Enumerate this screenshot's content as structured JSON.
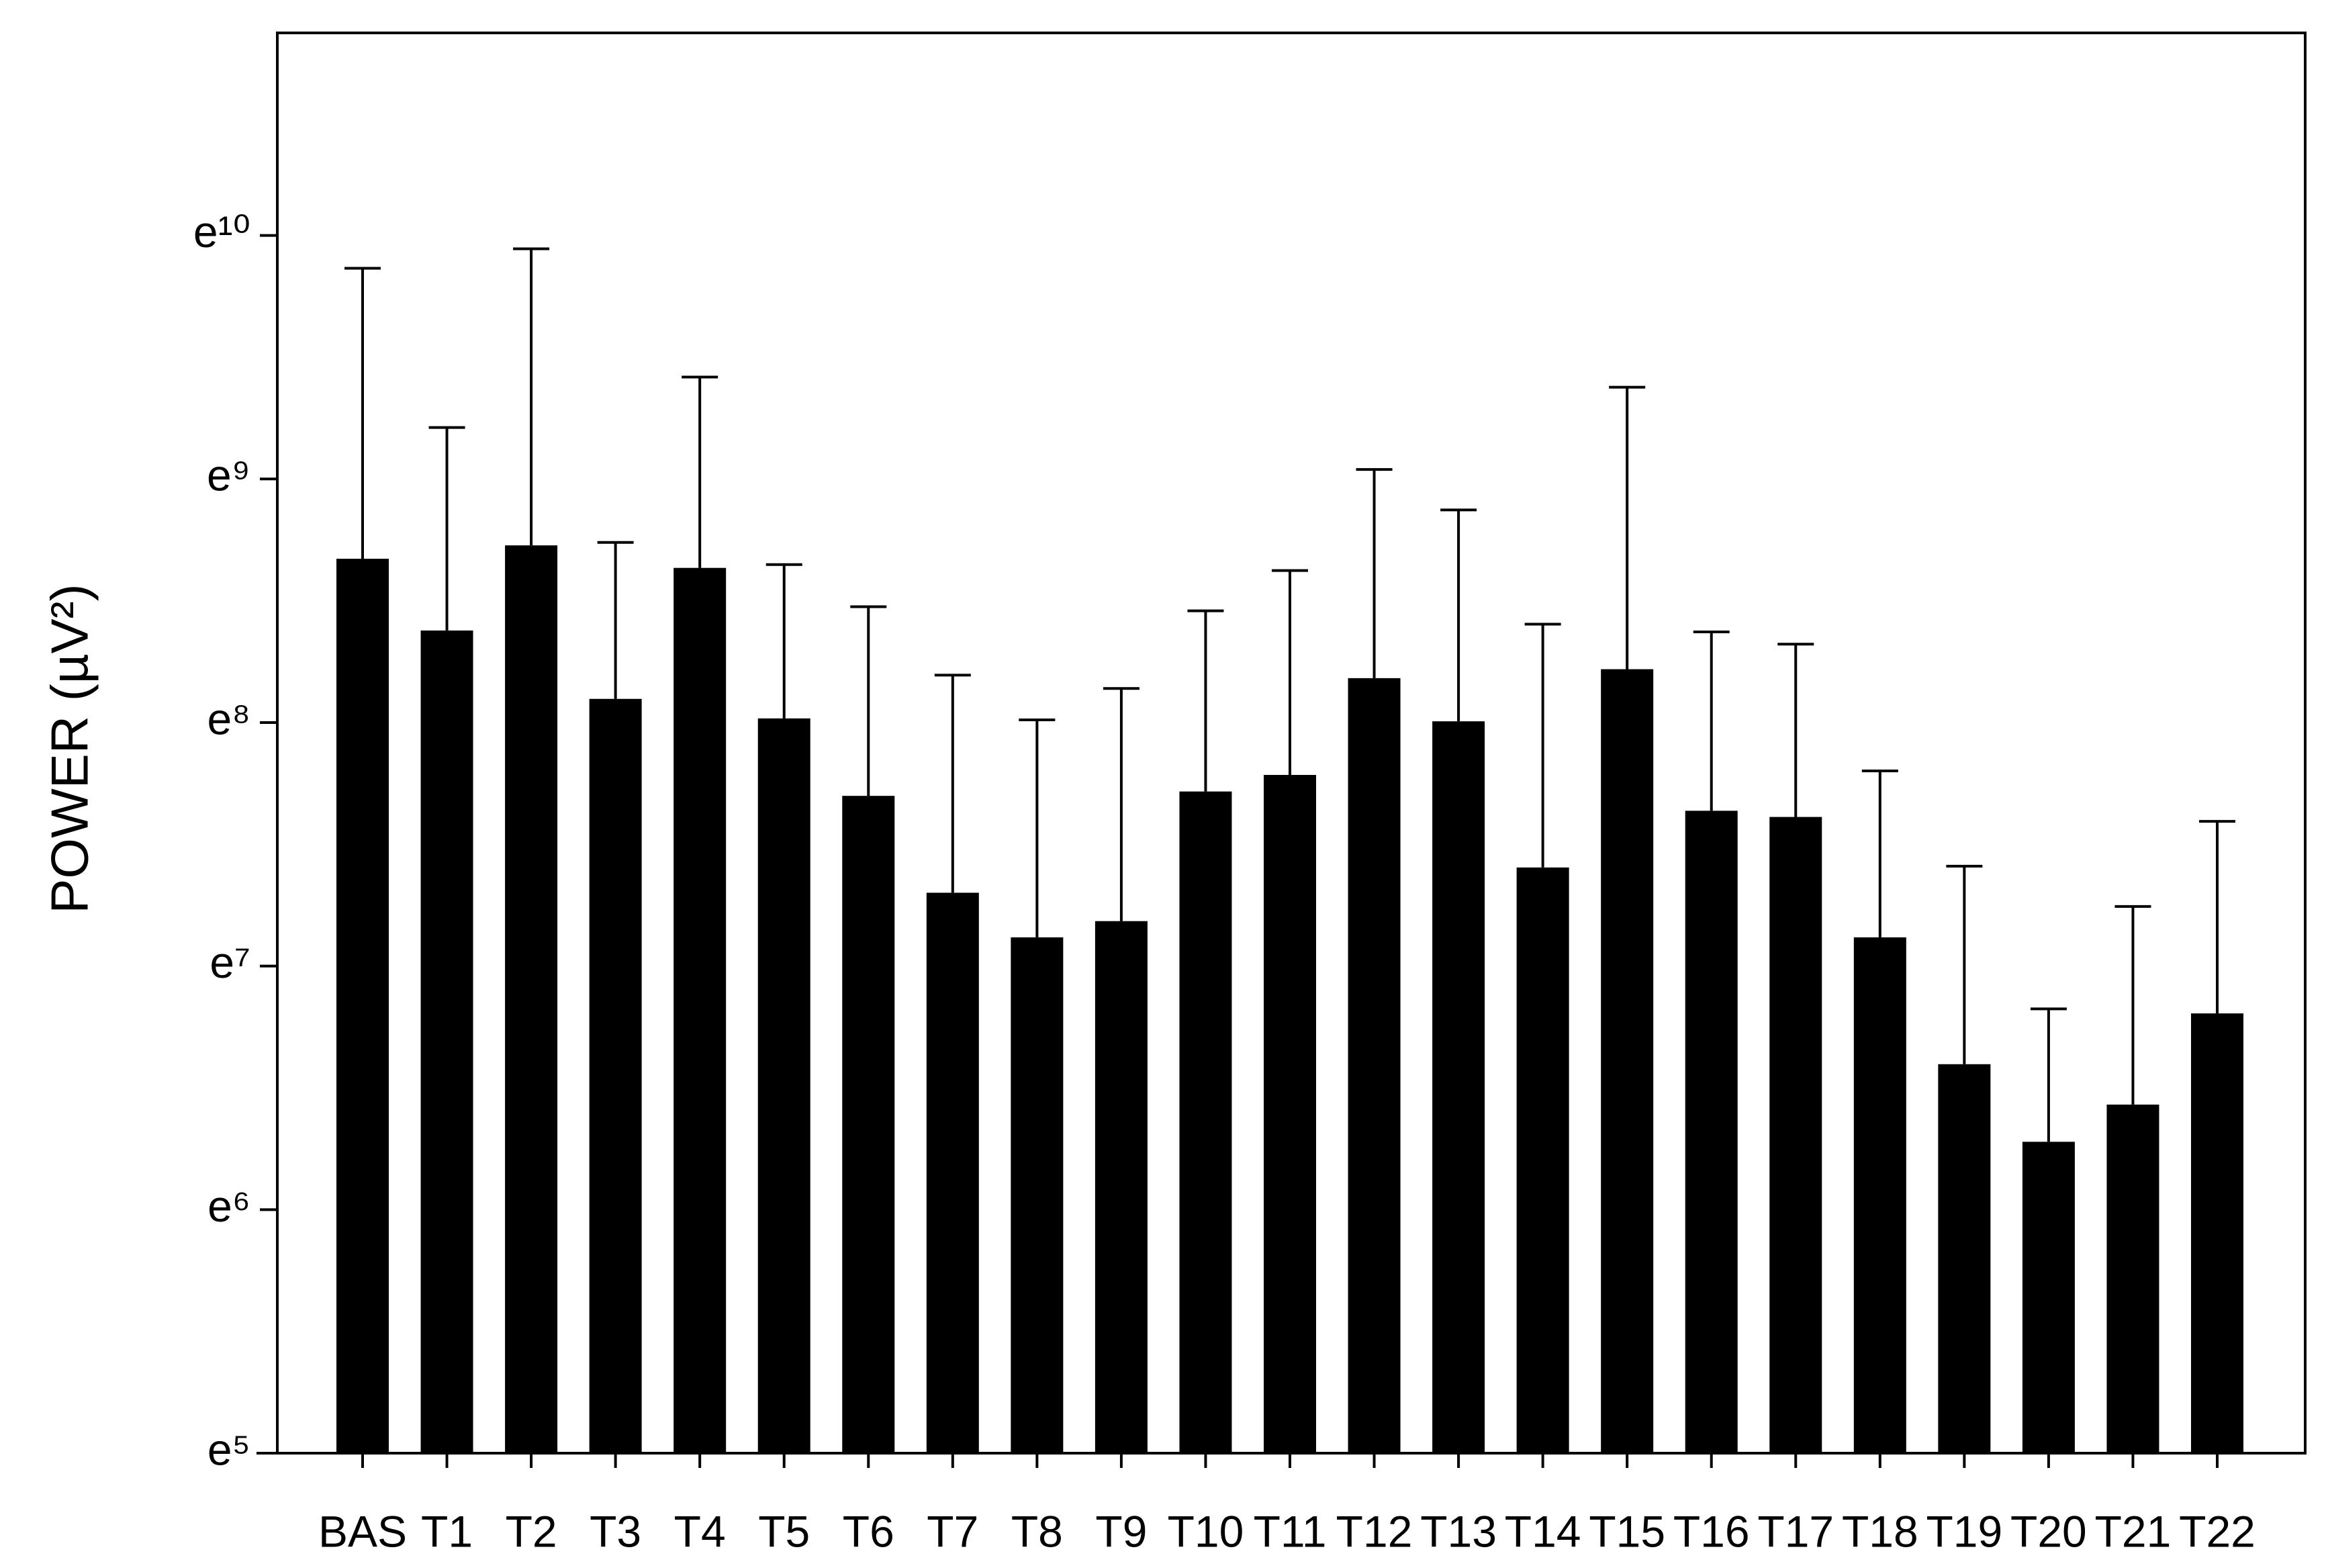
{
  "chart_data": {
    "type": "bar",
    "y_label": "POWER  (µV²)",
    "categories": [
      "BAS",
      "T1",
      "T2",
      "T3",
      "T4",
      "T5",
      "T6",
      "T7",
      "T8",
      "T9",
      "T10",
      "T11",
      "T12",
      "T13",
      "T14",
      "T15",
      "T16",
      "T17",
      "T18",
      "T19",
      "T20",
      "T21",
      "T22"
    ],
    "values": [
      5840,
      4350,
      6170,
      3285,
      5625,
      3032,
      2206,
      1482,
      1234,
      1319,
      2246,
      2404,
      3577,
      2996,
      1644,
      3711,
      2075,
      2023,
      1234,
      733,
      533,
      621,
      903
    ],
    "errors": [
      13410,
      5660,
      14680,
      2960,
      6690,
      2670,
      2590,
      2140,
      1780,
      2110,
      2470,
      3160,
      4850,
      4140,
      2820,
      8100,
      2250,
      2090,
      1210,
      920,
      387,
      780,
      1084
    ],
    "color": "#000000",
    "log_scale": true,
    "ylim": [
      148.41,
      50600
    ],
    "yticks": [
      {
        "value": 148.41,
        "label": "e⁵"
      },
      {
        "value": 403.43,
        "label": "e⁶"
      },
      {
        "value": 1096.63,
        "label": "e⁷"
      },
      {
        "value": 2980.96,
        "label": "e⁸"
      },
      {
        "value": 8103.08,
        "label": "e⁹"
      },
      {
        "value": 22026.47,
        "label": "e¹⁰"
      }
    ],
    "grid": false
  }
}
